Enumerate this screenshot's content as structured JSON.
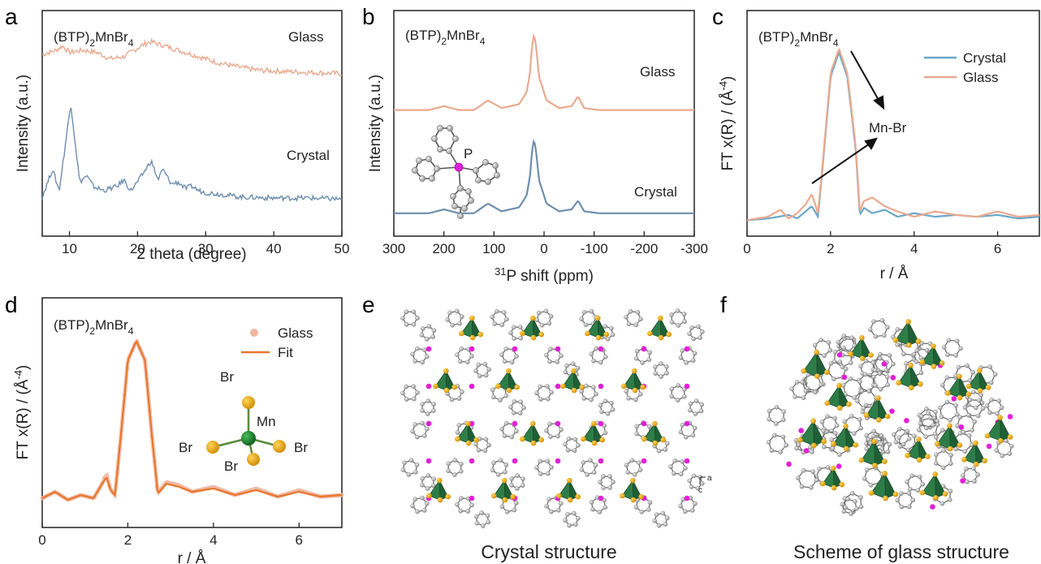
{
  "panels": {
    "a": {
      "letter": "a",
      "compound": "(BTP)",
      "sub2": "2",
      "mid": "MnBr",
      "sub4": "4"
    },
    "b": {
      "letter": "b",
      "compound": "(BTP)",
      "sub2": "2",
      "mid": "MnBr",
      "sub4": "4",
      "atom": "P"
    },
    "c": {
      "letter": "c",
      "compound": "(BTP)",
      "sub2": "2",
      "mid": "MnBr",
      "sub4": "4",
      "arrow_label": "Mn-Br"
    },
    "d": {
      "letter": "d",
      "compound": "(BTP)",
      "sub2": "2",
      "mid": "MnBr",
      "sub4": "4",
      "atoms": {
        "br": "Br",
        "mn": "Mn"
      }
    },
    "e": {
      "letter": "e",
      "caption": "Crystal structure",
      "axis_a": "a",
      "axis_c": "c"
    },
    "f": {
      "letter": "f",
      "caption": "Scheme of glass structure"
    }
  },
  "chart_data": [
    {
      "id": "a",
      "type": "line",
      "xlabel": "2 theta (degree)",
      "ylabel": "Intensity (a.u.)",
      "xlim": [
        6,
        50
      ],
      "xticks": [
        "10",
        "20",
        "30",
        "40",
        "50"
      ],
      "series": [
        {
          "name": "Glass",
          "color": "#eba98f",
          "x": [
            6,
            8,
            9,
            10,
            12,
            14,
            16,
            18,
            20,
            21,
            22,
            23,
            24,
            26,
            28,
            30,
            32,
            35,
            38,
            42,
            46,
            50
          ],
          "y": [
            0.82,
            0.84,
            0.86,
            0.83,
            0.84,
            0.83,
            0.8,
            0.81,
            0.85,
            0.87,
            0.88,
            0.87,
            0.86,
            0.84,
            0.82,
            0.8,
            0.78,
            0.76,
            0.745,
            0.74,
            0.735,
            0.73
          ]
        },
        {
          "name": "Crystal",
          "color": "#6f8eb0",
          "x": [
            6,
            7.5,
            8.5,
            10.2,
            11.5,
            12.5,
            13.5,
            15,
            17,
            18,
            19,
            20,
            21,
            22,
            23,
            23.7,
            25,
            26,
            27,
            28,
            29,
            30,
            33,
            35,
            40,
            45,
            50
          ],
          "y": [
            0.15,
            0.28,
            0.18,
            0.59,
            0.22,
            0.25,
            0.2,
            0.18,
            0.2,
            0.23,
            0.18,
            0.22,
            0.27,
            0.32,
            0.23,
            0.28,
            0.21,
            0.22,
            0.19,
            0.2,
            0.18,
            0.17,
            0.16,
            0.15,
            0.145,
            0.145,
            0.14
          ]
        }
      ]
    },
    {
      "id": "b",
      "type": "line",
      "xlabel_sup": "31",
      "xlabel": "P shift (ppm)",
      "ylabel": "Intensity (a.u.)",
      "xlim": [
        300,
        -300
      ],
      "xticks": [
        "300",
        "200",
        "100",
        "0",
        "-100",
        "-200",
        "-300"
      ],
      "series": [
        {
          "name": "Glass",
          "color": "#eba98f",
          "x": [
            300,
            230,
            200,
            170,
            140,
            112,
            85,
            50,
            35,
            28,
            24,
            20,
            16,
            10,
            -5,
            -30,
            -55,
            -68,
            -80,
            -110,
            -160,
            -200,
            -300
          ],
          "y": [
            0.61,
            0.61,
            0.63,
            0.61,
            0.61,
            0.66,
            0.62,
            0.64,
            0.7,
            0.8,
            0.94,
            1.0,
            0.94,
            0.78,
            0.66,
            0.62,
            0.63,
            0.68,
            0.62,
            0.61,
            0.61,
            0.61,
            0.61
          ]
        },
        {
          "name": "Crystal",
          "color": "#6f8eb0",
          "x": [
            300,
            230,
            200,
            170,
            140,
            112,
            85,
            50,
            35,
            28,
            24,
            20,
            16,
            10,
            -5,
            -30,
            -55,
            -68,
            -80,
            -110,
            -160,
            -200,
            -300
          ],
          "y": [
            0.08,
            0.08,
            0.1,
            0.08,
            0.08,
            0.13,
            0.09,
            0.11,
            0.17,
            0.27,
            0.4,
            0.46,
            0.4,
            0.25,
            0.13,
            0.09,
            0.1,
            0.145,
            0.09,
            0.08,
            0.08,
            0.08,
            0.08
          ]
        }
      ]
    },
    {
      "id": "c",
      "type": "line",
      "xlabel": "r / Å",
      "ylabel": "FT x(R) / (Å",
      "ylabel_sup": "-4",
      "ylabel_end": ")",
      "xlim": [
        0,
        7
      ],
      "xticks": [
        "0",
        "2",
        "4",
        "6"
      ],
      "series": [
        {
          "name": "Crystal",
          "color": "#6aa7c8",
          "x": [
            0,
            0.5,
            1.0,
            1.2,
            1.4,
            1.55,
            1.7,
            1.85,
            2.0,
            2.2,
            2.4,
            2.6,
            2.7,
            2.8,
            3.0,
            3.3,
            3.6,
            4.0,
            4.5,
            5.0,
            5.5,
            6.0,
            6.5,
            7.0
          ],
          "y": [
            0.04,
            0.05,
            0.07,
            0.05,
            0.09,
            0.12,
            0.06,
            0.45,
            0.86,
            1.0,
            0.86,
            0.45,
            0.07,
            0.11,
            0.08,
            0.1,
            0.06,
            0.08,
            0.06,
            0.07,
            0.06,
            0.07,
            0.05,
            0.06
          ]
        },
        {
          "name": "Glass",
          "color": "#eba98f",
          "x": [
            0,
            0.5,
            0.8,
            1.0,
            1.2,
            1.4,
            1.55,
            1.7,
            1.85,
            2.0,
            2.2,
            2.4,
            2.6,
            2.7,
            2.8,
            3.0,
            3.3,
            3.6,
            4.0,
            4.5,
            5.0,
            5.5,
            6.0,
            6.5,
            7.0
          ],
          "y": [
            0.04,
            0.06,
            0.1,
            0.05,
            0.08,
            0.13,
            0.19,
            0.08,
            0.47,
            0.88,
            1.02,
            0.88,
            0.47,
            0.09,
            0.15,
            0.17,
            0.12,
            0.09,
            0.06,
            0.09,
            0.07,
            0.06,
            0.09,
            0.06,
            0.07
          ]
        }
      ]
    },
    {
      "id": "d",
      "type": "line",
      "xlabel": "r / Å",
      "ylabel": "FT x(R) / (Å",
      "ylabel_sup": "-4",
      "ylabel_end": ")",
      "xlim": [
        0,
        7
      ],
      "xticks": [
        "0",
        "2",
        "4",
        "6"
      ],
      "series": [
        {
          "name": "Glass",
          "color": "#f0b7a0",
          "x": [
            0,
            0.3,
            0.6,
            0.9,
            1.2,
            1.4,
            1.5,
            1.6,
            1.7,
            1.85,
            2.0,
            2.2,
            2.4,
            2.55,
            2.7,
            2.9,
            3.2,
            3.5,
            4.0,
            4.5,
            5.0,
            5.5,
            6.0,
            6.5,
            7.0
          ],
          "y": [
            0.03,
            0.07,
            0.02,
            0.05,
            0.03,
            0.12,
            0.18,
            0.08,
            0.05,
            0.45,
            0.88,
            1.0,
            0.88,
            0.45,
            0.06,
            0.13,
            0.11,
            0.07,
            0.1,
            0.05,
            0.09,
            0.04,
            0.08,
            0.04,
            0.05
          ]
        },
        {
          "name": "Fit",
          "color": "#e8762b",
          "x": [
            0,
            0.3,
            0.6,
            0.9,
            1.2,
            1.4,
            1.5,
            1.6,
            1.7,
            1.85,
            2.0,
            2.2,
            2.4,
            2.55,
            2.7,
            2.9,
            3.2,
            3.5,
            4.0,
            4.5,
            5.0,
            5.5,
            6.0,
            6.5,
            7.0
          ],
          "y": [
            0.03,
            0.07,
            0.02,
            0.05,
            0.03,
            0.12,
            0.16,
            0.08,
            0.05,
            0.45,
            0.88,
            1.0,
            0.88,
            0.45,
            0.06,
            0.12,
            0.1,
            0.07,
            0.09,
            0.05,
            0.08,
            0.04,
            0.07,
            0.04,
            0.05
          ]
        }
      ]
    }
  ]
}
